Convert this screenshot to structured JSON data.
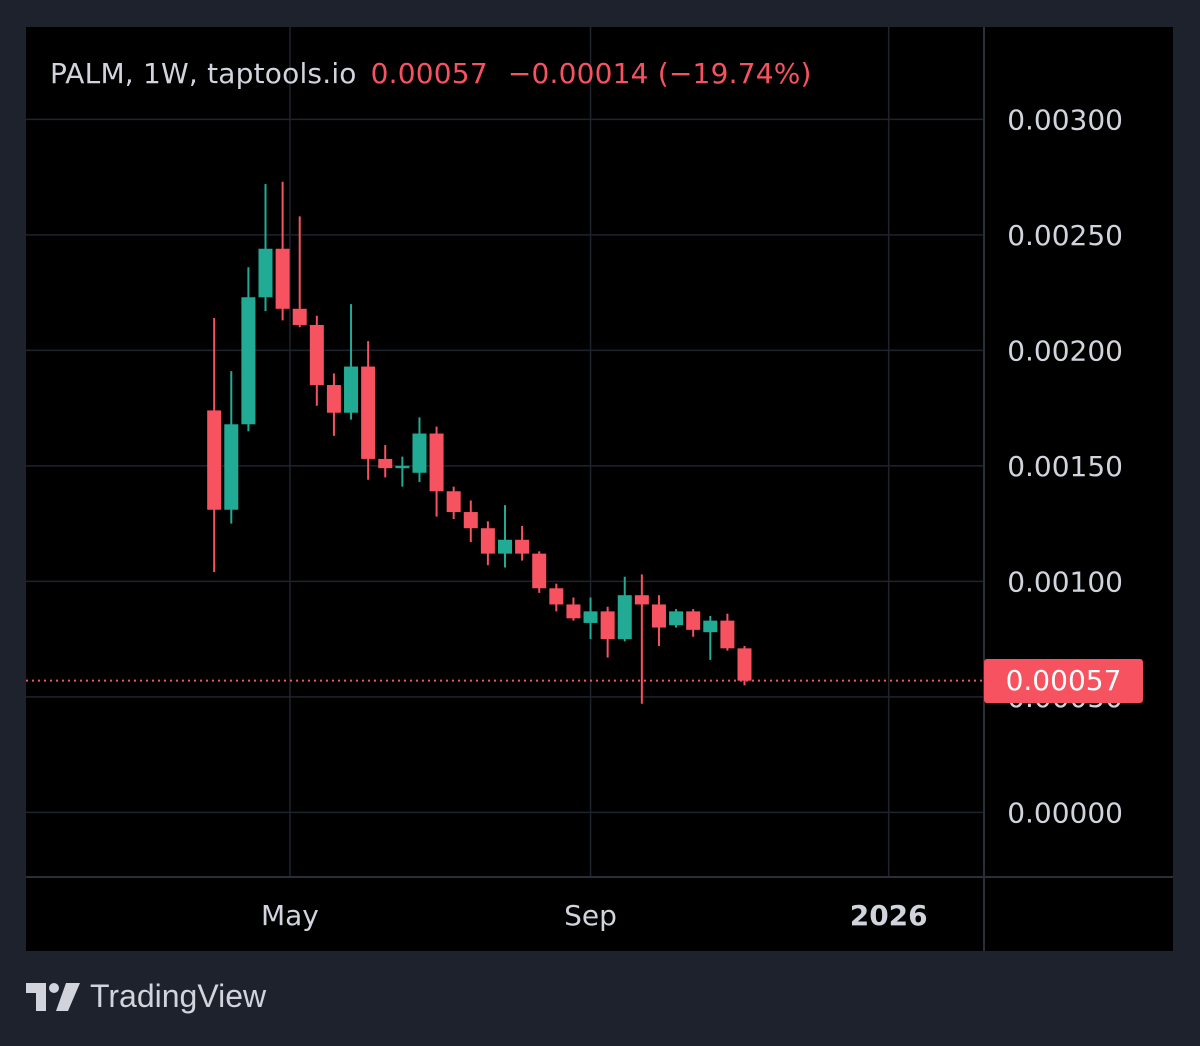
{
  "legend": {
    "symbol": "PALM, 1W, taptools.io",
    "price": "0.00057",
    "change": "−0.00014 (−19.74%)"
  },
  "brand": {
    "name": "TradingView",
    "logo_icon": "tradingview-logo-icon"
  },
  "colors": {
    "background": "#1e222d",
    "panel": "#000000",
    "grid": "#1f232c",
    "up": "#22ab94",
    "down": "#f7525f",
    "text": "#d1d4dc"
  },
  "chart_data": {
    "type": "candlestick",
    "interval": "1W",
    "y_axis": {
      "position": "right",
      "range": [
        -0.00028,
        0.0034
      ],
      "tick_values": [
        0.003,
        0.0025,
        0.002,
        0.0015,
        0.001,
        0.0005,
        0.0
      ],
      "tick_labels": [
        "0.00300",
        "0.00250",
        "0.00200",
        "0.00150",
        "0.00100",
        "0.00050",
        "0.00000"
      ]
    },
    "x_axis": {
      "range": [
        "2025-01-13",
        "2026-02-09"
      ],
      "ticks": [
        {
          "date": "2025-05-01",
          "label": "May",
          "bold": false
        },
        {
          "date": "2025-09-01",
          "label": "Sep",
          "bold": false
        },
        {
          "date": "2026-01-01",
          "label": "2026",
          "bold": true
        }
      ]
    },
    "last_price": 0.00057,
    "last_price_label": "0.00057",
    "candles": [
      {
        "date": "2025-03-31",
        "o": 0.00174,
        "h": 0.00214,
        "l": 0.00104,
        "c": 0.00131
      },
      {
        "date": "2025-04-07",
        "o": 0.00131,
        "h": 0.00191,
        "l": 0.00125,
        "c": 0.00168
      },
      {
        "date": "2025-04-14",
        "o": 0.00168,
        "h": 0.00236,
        "l": 0.00165,
        "c": 0.00223
      },
      {
        "date": "2025-04-21",
        "o": 0.00223,
        "h": 0.00272,
        "l": 0.00217,
        "c": 0.00244
      },
      {
        "date": "2025-04-28",
        "o": 0.00244,
        "h": 0.00273,
        "l": 0.00213,
        "c": 0.00218
      },
      {
        "date": "2025-05-05",
        "o": 0.00218,
        "h": 0.00258,
        "l": 0.0021,
        "c": 0.00211
      },
      {
        "date": "2025-05-12",
        "o": 0.00211,
        "h": 0.00215,
        "l": 0.00176,
        "c": 0.00185
      },
      {
        "date": "2025-05-19",
        "o": 0.00185,
        "h": 0.0019,
        "l": 0.00163,
        "c": 0.00173
      },
      {
        "date": "2025-05-26",
        "o": 0.00173,
        "h": 0.0022,
        "l": 0.0017,
        "c": 0.00193
      },
      {
        "date": "2025-06-02",
        "o": 0.00193,
        "h": 0.00204,
        "l": 0.00144,
        "c": 0.00153
      },
      {
        "date": "2025-06-09",
        "o": 0.00153,
        "h": 0.00159,
        "l": 0.00145,
        "c": 0.00149
      },
      {
        "date": "2025-06-16",
        "o": 0.00149,
        "h": 0.00154,
        "l": 0.00141,
        "c": 0.0015
      },
      {
        "date": "2025-06-23",
        "o": 0.00147,
        "h": 0.00171,
        "l": 0.00143,
        "c": 0.00164
      },
      {
        "date": "2025-06-30",
        "o": 0.00164,
        "h": 0.00167,
        "l": 0.00128,
        "c": 0.00139
      },
      {
        "date": "2025-07-07",
        "o": 0.00139,
        "h": 0.00141,
        "l": 0.00127,
        "c": 0.0013
      },
      {
        "date": "2025-07-14",
        "o": 0.0013,
        "h": 0.00135,
        "l": 0.00117,
        "c": 0.00123
      },
      {
        "date": "2025-07-21",
        "o": 0.00123,
        "h": 0.00126,
        "l": 0.00107,
        "c": 0.00112
      },
      {
        "date": "2025-07-28",
        "o": 0.00112,
        "h": 0.00133,
        "l": 0.00106,
        "c": 0.00118
      },
      {
        "date": "2025-08-04",
        "o": 0.00118,
        "h": 0.00124,
        "l": 0.00109,
        "c": 0.00112
      },
      {
        "date": "2025-08-11",
        "o": 0.00112,
        "h": 0.00113,
        "l": 0.00095,
        "c": 0.00097
      },
      {
        "date": "2025-08-18",
        "o": 0.00097,
        "h": 0.00099,
        "l": 0.00087,
        "c": 0.0009
      },
      {
        "date": "2025-08-25",
        "o": 0.0009,
        "h": 0.00093,
        "l": 0.00083,
        "c": 0.00084
      },
      {
        "date": "2025-09-01",
        "o": 0.00082,
        "h": 0.00093,
        "l": 0.00075,
        "c": 0.00087
      },
      {
        "date": "2025-09-08",
        "o": 0.00087,
        "h": 0.00089,
        "l": 0.00067,
        "c": 0.00075
      },
      {
        "date": "2025-09-15",
        "o": 0.00075,
        "h": 0.00102,
        "l": 0.00074,
        "c": 0.00094
      },
      {
        "date": "2025-09-22",
        "o": 0.00094,
        "h": 0.00103,
        "l": 0.00047,
        "c": 0.0009
      },
      {
        "date": "2025-09-29",
        "o": 0.0009,
        "h": 0.00094,
        "l": 0.00072,
        "c": 0.0008
      },
      {
        "date": "2025-10-06",
        "o": 0.00081,
        "h": 0.00088,
        "l": 0.0008,
        "c": 0.00087
      },
      {
        "date": "2025-10-13",
        "o": 0.00087,
        "h": 0.00088,
        "l": 0.00076,
        "c": 0.00079
      },
      {
        "date": "2025-10-20",
        "o": 0.00078,
        "h": 0.00085,
        "l": 0.00066,
        "c": 0.00083
      },
      {
        "date": "2025-10-27",
        "o": 0.00083,
        "h": 0.00086,
        "l": 0.0007,
        "c": 0.00071
      },
      {
        "date": "2025-11-03",
        "o": 0.00071,
        "h": 0.00072,
        "l": 0.00055,
        "c": 0.00057
      }
    ]
  }
}
